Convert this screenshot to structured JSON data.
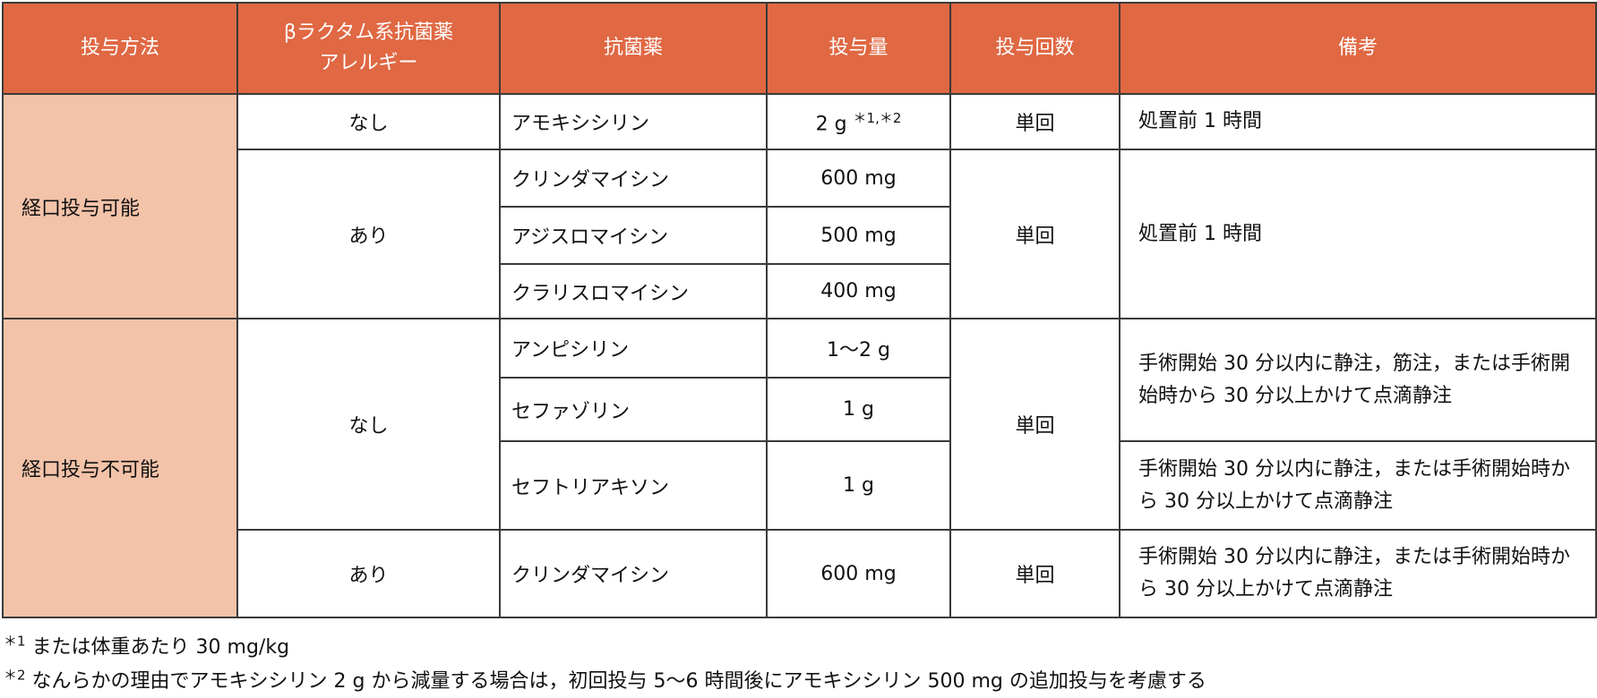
{
  "header": [
    "投与方法",
    "βラクタム系抗菌薬アレルギー",
    "抗菌薬",
    "投与量",
    "投与回数",
    "備考"
  ],
  "header_allergy_lines": [
    "βラクタム系抗菌薬",
    "アレルギー"
  ],
  "colors": {
    "header_bg": "#e06843",
    "method_bg": "#f3c3a9"
  },
  "oral": {
    "method": "経口投与可能",
    "none": {
      "allergy": "なし",
      "drug": "アモキシシリン",
      "dose": "2 g",
      "dose_note": "＊1,＊2",
      "count": "単回",
      "note": "処置前 1 時間"
    },
    "yes": {
      "allergy": "あり",
      "count": "単回",
      "note": "処置前 1 時間",
      "drugs": [
        {
          "drug": "クリンダマイシン",
          "dose": "600 mg"
        },
        {
          "drug": "アジスロマイシン",
          "dose": "500 mg"
        },
        {
          "drug": "クラリスロマイシン",
          "dose": "400 mg"
        }
      ]
    }
  },
  "nonoral": {
    "method": "経口投与不可能",
    "none": {
      "allergy": "なし",
      "count": "単回",
      "drugs": [
        {
          "drug": "アンピシリン",
          "dose": "1〜2 g"
        },
        {
          "drug": "セファゾリン",
          "dose": "1 g"
        },
        {
          "drug": "セフトリアキソン",
          "dose": "1 g"
        }
      ],
      "note_a": "手術開始 30 分以内に静注，筋注，または手術開始時から 30 分以上かけて点滴静注",
      "note_b": "手術開始 30 分以内に静注，または手術開始時から 30 分以上かけて点滴静注"
    },
    "yes": {
      "allergy": "あり",
      "drug": "クリンダマイシン",
      "dose": "600 mg",
      "count": "単回",
      "note": "手術開始 30 分以内に静注，または手術開始時から 30 分以上かけて点滴静注"
    }
  },
  "footnotes": [
    {
      "mark": "＊1",
      "text": "または体重あたり 30 mg/kg"
    },
    {
      "mark": "＊2",
      "text": "なんらかの理由でアモキシシリン 2 g から減量する場合は，初回投与 5〜6 時間後にアモキシシリン 500 mg の追加投与を考慮する"
    }
  ]
}
